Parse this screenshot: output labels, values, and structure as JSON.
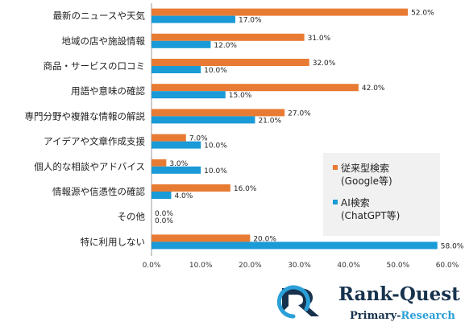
{
  "chart_data": {
    "type": "bar",
    "orientation": "horizontal",
    "categories": [
      "最新のニュースや天気",
      "地域の店や施設情報",
      "商品・サービスの口コミ",
      "用語や意味の確認",
      "専門分野や複雑な情報の解説",
      "アイデアや文章作成支援",
      "個人的な相談やアドバイス",
      "情報源や信憑性の確認",
      "その他",
      "特に利用しない"
    ],
    "series": [
      {
        "name": "従来型検索\n(Google等)",
        "color": "#e87b33",
        "values": [
          52.0,
          31.0,
          32.0,
          42.0,
          27.0,
          7.0,
          3.0,
          16.0,
          0.0,
          20.0
        ]
      },
      {
        "name": "AI検索\n(ChatGPT等)",
        "color": "#1a9ad6",
        "values": [
          17.0,
          12.0,
          10.0,
          15.0,
          21.0,
          10.0,
          10.0,
          4.0,
          0.0,
          58.0
        ]
      }
    ],
    "value_format": "%",
    "xlim": [
      0,
      60
    ],
    "xticks": [
      "0.0%",
      "10.0%",
      "20.0%",
      "30.0%",
      "40.0%",
      "50.0%",
      "60.0%"
    ],
    "legend_position": "right-middle",
    "grid": false
  },
  "brand": {
    "name": "Rank-Quest",
    "tagline_a": "Primary-",
    "tagline_b": "Research",
    "colors": {
      "navy": "#17324d",
      "teal": "#2a9fd8"
    }
  }
}
